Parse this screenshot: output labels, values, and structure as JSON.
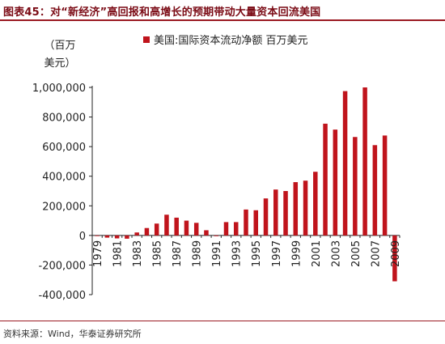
{
  "header": {
    "title": "图表45：对“新经济”高回报和高增长的预期带动大量资本回流美国"
  },
  "footer": {
    "source": "资料来源：Wind，华泰证券研究所"
  },
  "chart_data": {
    "type": "bar",
    "unit_label_line1": "（百万",
    "unit_label_line2": "美元）",
    "legend_position": "top",
    "grid": false,
    "color": "#c0141c",
    "x": [
      1979,
      1980,
      1981,
      1982,
      1983,
      1984,
      1985,
      1986,
      1987,
      1988,
      1989,
      1990,
      1991,
      1992,
      1993,
      1994,
      1995,
      1996,
      1997,
      1998,
      1999,
      2000,
      2001,
      2002,
      2003,
      2004,
      2005,
      2006,
      2007,
      2008,
      2009
    ],
    "x_tick_labels": [
      "1979",
      "1981",
      "1983",
      "1985",
      "1987",
      "1989",
      "1991",
      "1993",
      "1995",
      "1997",
      "1999",
      "2001",
      "2003",
      "2005",
      "2007",
      "2009"
    ],
    "series": [
      {
        "name": "美国:国际资本流动净额 百万美元",
        "values": [
          -2000,
          -15000,
          -20000,
          -22000,
          20000,
          50000,
          80000,
          140000,
          120000,
          100000,
          85000,
          35000,
          -5000,
          90000,
          90000,
          175000,
          170000,
          250000,
          310000,
          300000,
          360000,
          370000,
          430000,
          755000,
          715000,
          975000,
          665000,
          1000000,
          610000,
          675000,
          -310000
        ]
      }
    ],
    "y_ticks": [
      1000000,
      800000,
      600000,
      400000,
      200000,
      0,
      -200000,
      -400000
    ],
    "y_tick_labels": [
      "1,000,000",
      "800,000",
      "600,000",
      "400,000",
      "200,000",
      "0",
      "-200,000",
      "-400,000"
    ],
    "ylim": [
      -400000,
      1000000
    ]
  }
}
